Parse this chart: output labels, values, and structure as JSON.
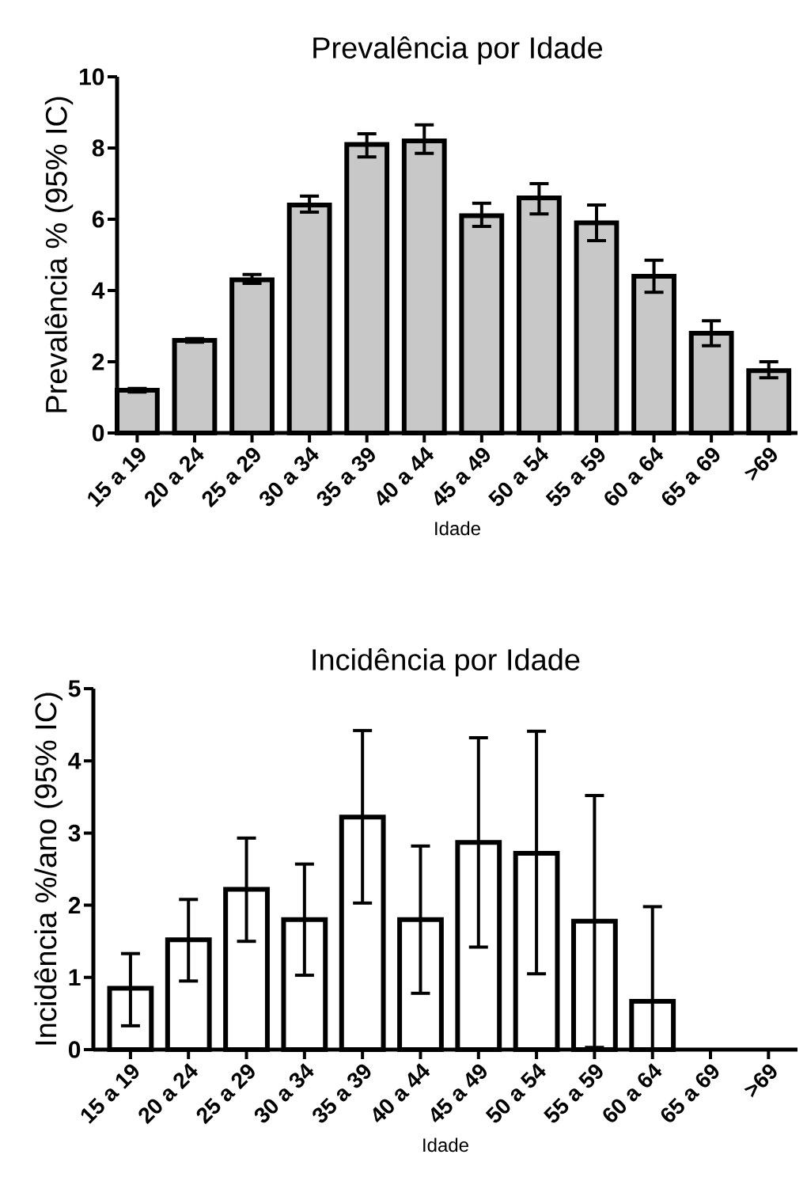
{
  "chart_data": [
    {
      "type": "bar",
      "title": "Prevalência por Idade",
      "xlabel": "Idade",
      "ylabel": "Prevalência % (95% IC)",
      "categories": [
        "15 a 19",
        "20 a 24",
        "25 a 29",
        "30 a 34",
        "35 a 39",
        "40 a 44",
        "45 a 49",
        "50 a 54",
        "55 a 59",
        "60 a 64",
        "65 a 69",
        ">69"
      ],
      "values": [
        1.2,
        2.6,
        4.3,
        6.4,
        8.1,
        8.2,
        6.1,
        6.6,
        5.9,
        4.4,
        2.8,
        1.75
      ],
      "errors": [
        [
          1.15,
          1.25
        ],
        [
          2.55,
          2.65
        ],
        [
          4.2,
          4.45
        ],
        [
          6.2,
          6.65
        ],
        [
          7.75,
          8.4
        ],
        [
          7.85,
          8.65
        ],
        [
          5.8,
          6.45
        ],
        [
          6.15,
          7.0
        ],
        [
          5.4,
          6.4
        ],
        [
          3.95,
          4.85
        ],
        [
          2.45,
          3.15
        ],
        [
          1.55,
          2.0
        ]
      ],
      "color": "#c8c8c8",
      "ylim": [
        0,
        10
      ],
      "yticks": [
        0,
        2,
        4,
        6,
        8,
        10
      ]
    },
    {
      "type": "bar",
      "title": "Incidência por Idade",
      "xlabel": "Idade",
      "ylabel": "Incidência %/ano (95% IC)",
      "categories": [
        "15 a 19",
        "20 a 24",
        "25 a 29",
        "30 a 34",
        "35 a 39",
        "40 a 44",
        "45 a 49",
        "50 a 54",
        "55 a 59",
        "60 a 64",
        "65 a 69",
        ">69"
      ],
      "values": [
        0.85,
        1.52,
        2.22,
        1.8,
        3.22,
        1.8,
        2.87,
        2.72,
        1.78,
        0.67,
        null,
        null
      ],
      "errors": [
        [
          0.33,
          1.33
        ],
        [
          0.95,
          2.08
        ],
        [
          1.5,
          2.93
        ],
        [
          1.03,
          2.57
        ],
        [
          2.03,
          4.42
        ],
        [
          0.78,
          2.82
        ],
        [
          1.42,
          4.32
        ],
        [
          1.05,
          4.41
        ],
        [
          0.03,
          3.52
        ],
        [
          0,
          1.98
        ],
        null,
        null
      ],
      "color": "#ffffff",
      "ylim": [
        0,
        5
      ],
      "yticks": [
        0,
        1,
        2,
        3,
        4,
        5
      ]
    }
  ]
}
